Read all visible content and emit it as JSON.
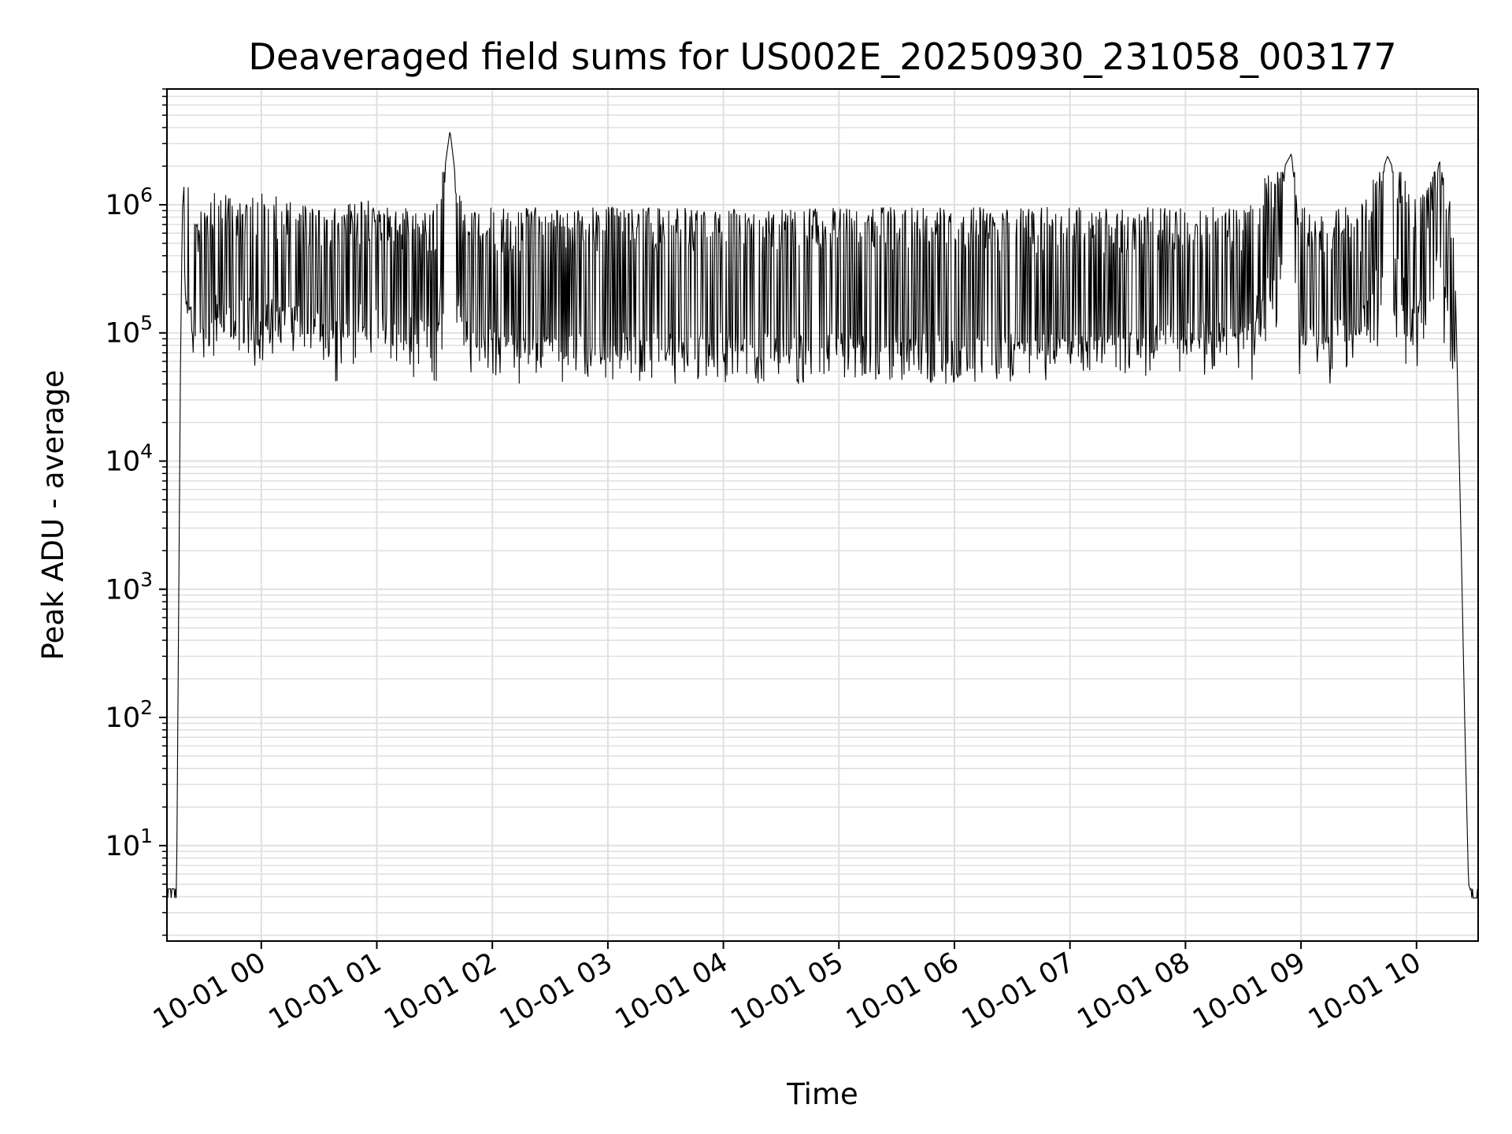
{
  "chart_data": {
    "type": "line",
    "title": "Deaveraged field sums for US002E_20250930_231058_003177",
    "xlabel": "Time",
    "ylabel": "Peak ADU - average",
    "y_scale": "log",
    "ylim": [
      1.8,
      8000000
    ],
    "xlim": [
      "2025-09-30 23:11",
      "2025-10-01 10:32"
    ],
    "grid": true,
    "line_color": "#000000",
    "grid_color": "#e0e0e0",
    "x_ticks": [
      {
        "value": "2025-10-01 00:00",
        "label": "10-01 00"
      },
      {
        "value": "2025-10-01 01:00",
        "label": "10-01 01"
      },
      {
        "value": "2025-10-01 02:00",
        "label": "10-01 02"
      },
      {
        "value": "2025-10-01 03:00",
        "label": "10-01 03"
      },
      {
        "value": "2025-10-01 04:00",
        "label": "10-01 04"
      },
      {
        "value": "2025-10-01 05:00",
        "label": "10-01 05"
      },
      {
        "value": "2025-10-01 06:00",
        "label": "10-01 06"
      },
      {
        "value": "2025-10-01 07:00",
        "label": "10-01 07"
      },
      {
        "value": "2025-10-01 08:00",
        "label": "10-01 08"
      },
      {
        "value": "2025-10-01 09:00",
        "label": "10-01 09"
      },
      {
        "value": "2025-10-01 10:00",
        "label": "10-01 10"
      }
    ],
    "y_ticks": [
      {
        "value": 10,
        "base": "10",
        "exp": "1"
      },
      {
        "value": 100,
        "base": "10",
        "exp": "2"
      },
      {
        "value": 1000,
        "base": "10",
        "exp": "3"
      },
      {
        "value": 10000,
        "base": "10",
        "exp": "4"
      },
      {
        "value": 100000,
        "base": "10",
        "exp": "5"
      },
      {
        "value": 1000000,
        "base": "10",
        "exp": "6"
      }
    ],
    "series": [
      {
        "x": [
          "2025-09-30 23:11",
          "2025-09-30 23:13",
          "2025-09-30 23:15",
          "2025-09-30 23:16",
          "2025-09-30 23:18",
          "2025-09-30 23:19",
          "2025-09-30 23:20",
          "2025-09-30 23:22",
          "2025-09-30 23:25",
          "2025-09-30 23:30",
          "2025-09-30 23:35",
          "2025-09-30 23:45",
          "2025-10-01 00:00",
          "2025-10-01 00:30",
          "2025-10-01 01:00",
          "2025-10-01 01:30",
          "2025-10-01 01:38",
          "2025-10-01 01:45",
          "2025-10-01 02:00",
          "2025-10-01 02:30",
          "2025-10-01 03:00",
          "2025-10-01 03:30",
          "2025-10-01 04:00",
          "2025-10-01 04:30",
          "2025-10-01 05:00",
          "2025-10-01 05:30",
          "2025-10-01 06:00",
          "2025-10-01 06:30",
          "2025-10-01 07:00",
          "2025-10-01 07:30",
          "2025-10-01 08:00",
          "2025-10-01 08:30",
          "2025-10-01 08:55",
          "2025-10-01 09:00",
          "2025-10-01 09:30",
          "2025-10-01 09:45",
          "2025-10-01 10:00",
          "2025-10-01 10:05",
          "2025-10-01 10:12",
          "2025-10-01 10:17",
          "2025-10-01 10:20",
          "2025-10-01 10:23",
          "2025-10-01 10:25",
          "2025-10-01 10:27",
          "2025-10-01 10:28",
          "2025-10-01 10:32"
        ],
        "y": [
          4.5,
          4.5,
          4.5,
          4.5,
          50000,
          900000,
          1500000,
          1200000,
          600000,
          500000,
          900000,
          700000,
          800000,
          600000,
          700000,
          500000,
          3800000,
          500000,
          450000,
          300000,
          250000,
          180000,
          120000,
          80000,
          60000,
          55000,
          60000,
          350000,
          400000,
          450000,
          480000,
          500000,
          2500000,
          500000,
          550000,
          2400000,
          700000,
          800000,
          2200000,
          800000,
          300000,
          3000,
          100,
          5,
          4.5,
          4.5
        ]
      }
    ]
  }
}
